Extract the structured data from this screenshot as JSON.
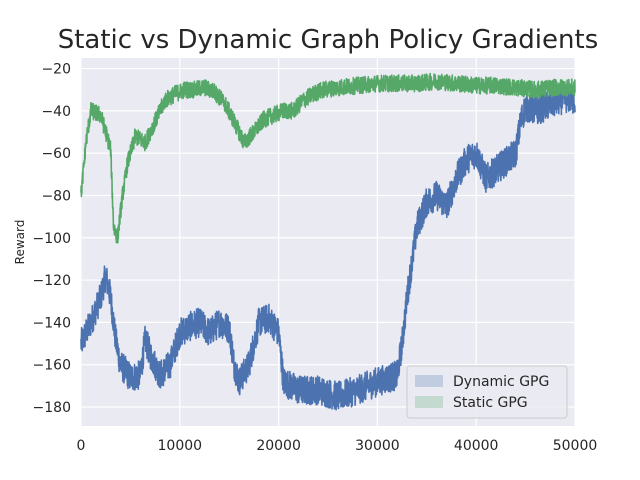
{
  "chart_data": {
    "type": "line",
    "title": "Static vs Dynamic Graph Policy Gradients",
    "xlabel": "",
    "ylabel": "Reward",
    "xlim": [
      0,
      50000
    ],
    "ylim": [
      -189,
      -15
    ],
    "xticks": [
      0,
      10000,
      20000,
      30000,
      40000,
      50000
    ],
    "yticks": [
      -20,
      -40,
      -60,
      -80,
      -100,
      -120,
      -140,
      -160,
      -180
    ],
    "grid": true,
    "legend": {
      "placement": "lower-right"
    },
    "series": [
      {
        "name": "Dynamic GPG",
        "color": "#4c72b0",
        "noise": 7,
        "points": [
          [
            0,
            -150
          ],
          [
            1000,
            -140
          ],
          [
            2000,
            -128
          ],
          [
            2500,
            -118
          ],
          [
            3000,
            -128
          ],
          [
            3500,
            -148
          ],
          [
            4000,
            -160
          ],
          [
            5000,
            -166
          ],
          [
            6000,
            -165
          ],
          [
            6500,
            -148
          ],
          [
            7000,
            -155
          ],
          [
            8000,
            -165
          ],
          [
            9000,
            -160
          ],
          [
            10000,
            -145
          ],
          [
            11000,
            -142
          ],
          [
            12000,
            -140
          ],
          [
            13000,
            -145
          ],
          [
            14000,
            -140
          ],
          [
            15000,
            -143
          ],
          [
            15500,
            -160
          ],
          [
            16000,
            -168
          ],
          [
            17000,
            -160
          ],
          [
            18000,
            -140
          ],
          [
            19000,
            -138
          ],
          [
            20000,
            -145
          ],
          [
            20500,
            -168
          ],
          [
            22000,
            -172
          ],
          [
            24000,
            -172
          ],
          [
            26000,
            -175
          ],
          [
            28000,
            -172
          ],
          [
            30000,
            -168
          ],
          [
            32000,
            -165
          ],
          [
            32500,
            -150
          ],
          [
            33000,
            -128
          ],
          [
            34000,
            -95
          ],
          [
            35000,
            -83
          ],
          [
            36000,
            -80
          ],
          [
            37000,
            -85
          ],
          [
            38000,
            -72
          ],
          [
            39000,
            -63
          ],
          [
            40000,
            -60
          ],
          [
            41000,
            -72
          ],
          [
            42000,
            -68
          ],
          [
            43000,
            -64
          ],
          [
            44000,
            -60
          ],
          [
            44500,
            -45
          ],
          [
            45000,
            -38
          ],
          [
            46000,
            -40
          ],
          [
            47000,
            -38
          ],
          [
            48000,
            -36
          ],
          [
            49000,
            -34
          ],
          [
            50000,
            -35
          ]
        ]
      },
      {
        "name": "Static GPG",
        "color": "#55a868",
        "noise": 4,
        "points": [
          [
            0,
            -80
          ],
          [
            500,
            -55
          ],
          [
            1000,
            -40
          ],
          [
            2000,
            -42
          ],
          [
            2500,
            -50
          ],
          [
            3000,
            -58
          ],
          [
            3300,
            -95
          ],
          [
            3700,
            -100
          ],
          [
            4200,
            -80
          ],
          [
            4700,
            -65
          ],
          [
            5500,
            -52
          ],
          [
            6500,
            -55
          ],
          [
            7500,
            -45
          ],
          [
            8500,
            -35
          ],
          [
            9500,
            -32
          ],
          [
            10500,
            -30
          ],
          [
            11500,
            -30
          ],
          [
            12500,
            -29
          ],
          [
            13500,
            -31
          ],
          [
            14500,
            -36
          ],
          [
            15500,
            -45
          ],
          [
            16500,
            -55
          ],
          [
            17500,
            -50
          ],
          [
            18500,
            -44
          ],
          [
            19500,
            -42
          ],
          [
            20500,
            -40
          ],
          [
            21500,
            -40
          ],
          [
            22500,
            -35
          ],
          [
            23500,
            -32
          ],
          [
            24500,
            -30
          ],
          [
            26000,
            -29
          ],
          [
            28000,
            -28
          ],
          [
            30000,
            -27
          ],
          [
            32000,
            -27
          ],
          [
            34000,
            -27
          ],
          [
            36000,
            -26
          ],
          [
            38000,
            -27
          ],
          [
            40000,
            -28
          ],
          [
            42000,
            -28
          ],
          [
            44000,
            -29
          ],
          [
            46000,
            -30
          ],
          [
            48000,
            -29
          ],
          [
            50000,
            -29
          ]
        ]
      }
    ]
  }
}
